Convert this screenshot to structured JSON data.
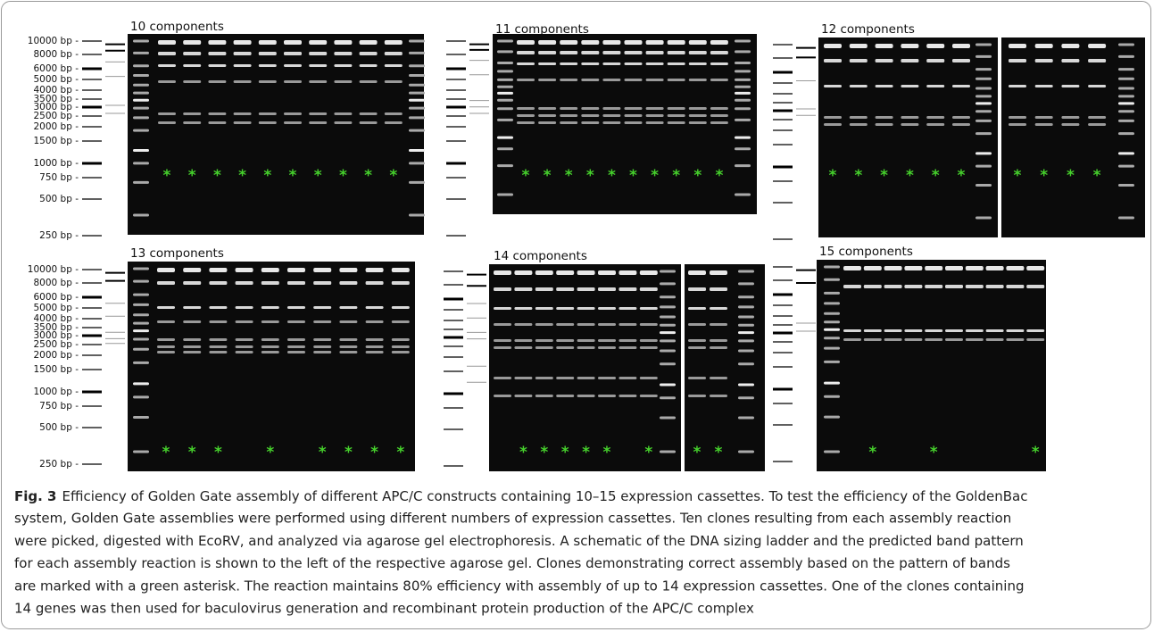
{
  "panels": [
    {
      "title": "10 components",
      "gels": [
        {
          "lanes": [
            "*",
            "*",
            "*",
            "*",
            "*",
            "*",
            "*",
            "*",
            "*",
            "*"
          ]
        }
      ]
    },
    {
      "title": "11 components",
      "gels": [
        {
          "lanes": [
            "*",
            "*",
            "*",
            "*",
            "*",
            "*",
            "*",
            "*",
            "*",
            "*"
          ]
        }
      ]
    },
    {
      "title": "12 components",
      "gels": [
        {
          "lanes": [
            "*",
            "*",
            "*",
            "*",
            "*",
            "*"
          ]
        },
        {
          "lanes": [
            "*",
            "*",
            "*",
            "*"
          ]
        }
      ]
    },
    {
      "title": "13 components",
      "gels": [
        {
          "lanes": [
            "*",
            "*",
            "*",
            null,
            "*",
            null,
            "*",
            "*",
            "*",
            "*"
          ]
        }
      ]
    },
    {
      "title": "14 components",
      "gels": [
        {
          "lanes": [
            null,
            "*",
            "*",
            "*",
            "*",
            "*",
            null,
            "*"
          ]
        },
        {
          "lanes": [
            "*",
            "*"
          ]
        }
      ]
    },
    {
      "title": "15 components",
      "gels": [
        {
          "lanes": [
            null,
            "*",
            null,
            null,
            "*",
            null,
            null,
            null,
            null,
            "*"
          ]
        }
      ]
    }
  ],
  "ladder": [
    "10000 bp -",
    "8000 bp -",
    "6000 bp -",
    "5000 bp -",
    "4000 bp -",
    "3500 bp -",
    "3000 bp -",
    "2500 bp -",
    "2000 bp -",
    "1500 bp -",
    "1000 bp -",
    "750 bp -",
    "500 bp -",
    "250 bp -"
  ],
  "caption": {
    "label": "Fig. 3",
    "lines": [
      "Efficiency of Golden Gate assembly of different APC/C constructs containing 10–15 expression cassettes. To test the efficiency of the GoldenBac",
      "system, Golden Gate assemblies were performed using different numbers of expression cassettes. Ten clones resulting from each assembly reaction",
      "were picked, digested with EcoRV, and analyzed via agarose gel electrophoresis. A schematic of the DNA sizing ladder and the predicted band pattern",
      "for each assembly reaction is shown to the left of the respective agarose gel. Clones demonstrating correct assembly based on the pattern of bands",
      "are marked with a green asterisk. The reaction maintains 80% efficiency with assembly of up to 14 expression cassettes. One of the clones containing",
      "14 genes was then used for baculovirus generation and recombinant protein production of the APC/C complex"
    ]
  }
}
